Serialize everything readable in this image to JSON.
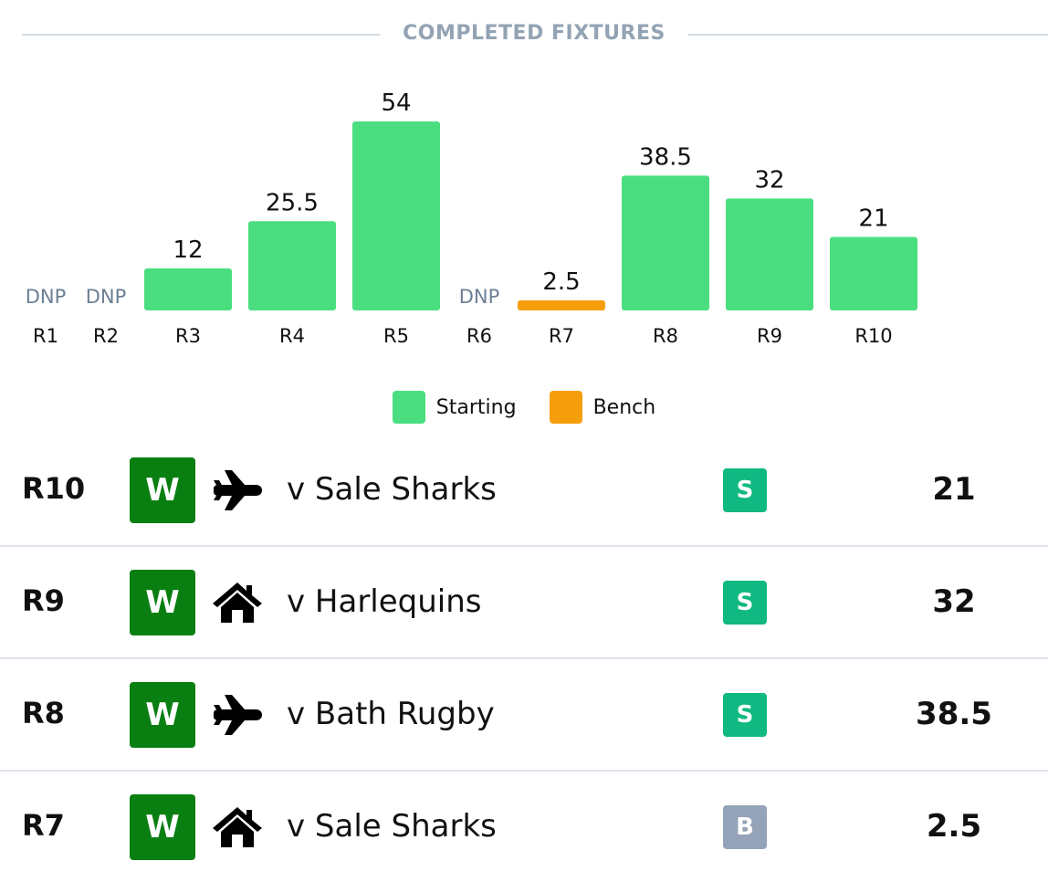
{
  "header": {
    "title": "COMPLETED FIXTURES"
  },
  "colors": {
    "starting": "#4ade80",
    "bench": "#f59e0b",
    "dnp_text": "#6b7f95",
    "win": "#0a7f11",
    "badge_s": "#10b981",
    "badge_b": "#94a3b8"
  },
  "chart_data": {
    "type": "bar",
    "categories": [
      "R1",
      "R2",
      "R3",
      "R4",
      "R5",
      "R6",
      "R7",
      "R8",
      "R9",
      "R10"
    ],
    "values": [
      null,
      null,
      12,
      25.5,
      54,
      null,
      2.5,
      38.5,
      32,
      21
    ],
    "value_labels": [
      "DNP",
      "DNP",
      "12",
      "25.5",
      "54",
      "DNP",
      "2.5",
      "38.5",
      "32",
      "21"
    ],
    "status": [
      "dnp",
      "dnp",
      "starting",
      "starting",
      "starting",
      "dnp",
      "bench",
      "starting",
      "starting",
      "starting"
    ],
    "title": "",
    "xlabel": "",
    "ylabel": "",
    "ylim": [
      0,
      54
    ],
    "grid": false,
    "legend": [
      {
        "name": "Starting",
        "key": "starting"
      },
      {
        "name": "Bench",
        "key": "bench"
      }
    ],
    "legend_position": "bottom-center"
  },
  "fixtures": [
    {
      "round": "R10",
      "result": "W",
      "venue": "away",
      "venue_icon": "plane-icon",
      "opponent": "v Sale Sharks",
      "role": "S",
      "points": "21"
    },
    {
      "round": "R9",
      "result": "W",
      "venue": "home",
      "venue_icon": "house-icon",
      "opponent": "v Harlequins",
      "role": "S",
      "points": "32"
    },
    {
      "round": "R8",
      "result": "W",
      "venue": "away",
      "venue_icon": "plane-icon",
      "opponent": "v Bath Rugby",
      "role": "S",
      "points": "38.5"
    },
    {
      "round": "R7",
      "result": "W",
      "venue": "home",
      "venue_icon": "house-icon",
      "opponent": "v Sale Sharks",
      "role": "B",
      "points": "2.5"
    }
  ]
}
